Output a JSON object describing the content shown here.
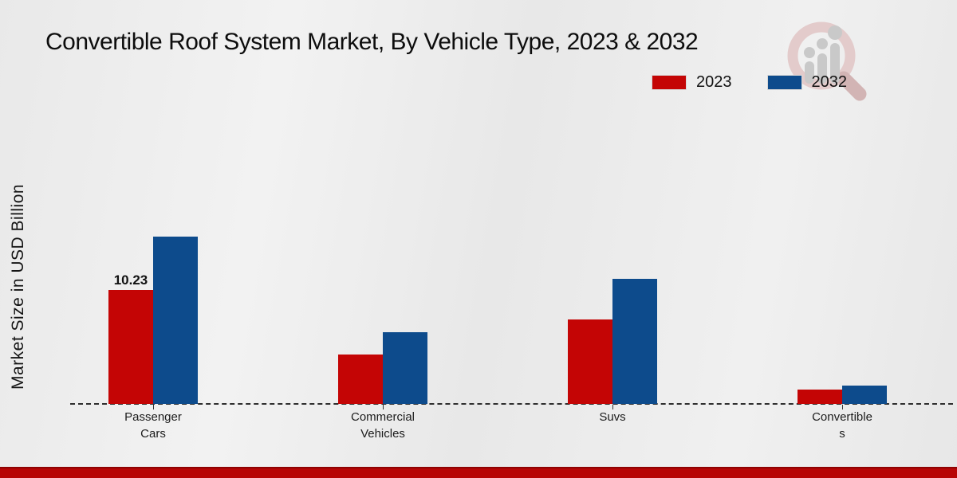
{
  "title": "Convertible Roof System Market, By Vehicle Type, 2023 & 2032",
  "y_axis_label": "Market Size in USD Billion",
  "legend": {
    "items": [
      {
        "label": "2023",
        "color": "#c40505"
      },
      {
        "label": "2032",
        "color": "#0d4b8c"
      }
    ]
  },
  "colors": {
    "series_2023": "#c40505",
    "series_2032": "#0d4b8c",
    "footer_bar": "#b70505",
    "baseline": "#2e2e2e",
    "background": "#ededed",
    "watermark_pink": "#e3cbcb",
    "watermark_gray": "#c9c9c9"
  },
  "chart_data": {
    "type": "bar",
    "title": "Convertible Roof System Market, By Vehicle Type, 2023 & 2032",
    "xlabel": "",
    "ylabel": "Market Size in USD Billion",
    "categories": [
      "Passenger Cars",
      "Commercial Vehicles",
      "Suvs",
      "Convertibles"
    ],
    "category_label_lines": [
      [
        "Passenger",
        "Cars"
      ],
      [
        "Commercial",
        "Vehicles"
      ],
      [
        "Suvs"
      ],
      [
        "Convertible",
        "s"
      ]
    ],
    "series": [
      {
        "name": "2023",
        "color": "#c40505",
        "values": [
          10.23,
          4.4,
          7.6,
          1.3
        ]
      },
      {
        "name": "2032",
        "color": "#0d4b8c",
        "values": [
          15.0,
          6.4,
          11.2,
          1.65
        ]
      }
    ],
    "data_labels": [
      {
        "series_index": 0,
        "category_index": 0,
        "text": "10.23"
      }
    ],
    "ylim": [
      0,
      16
    ],
    "grid": false,
    "legend_position": "top-right",
    "baseline_style": "dashed",
    "y_axis_ticks_visible": false
  }
}
